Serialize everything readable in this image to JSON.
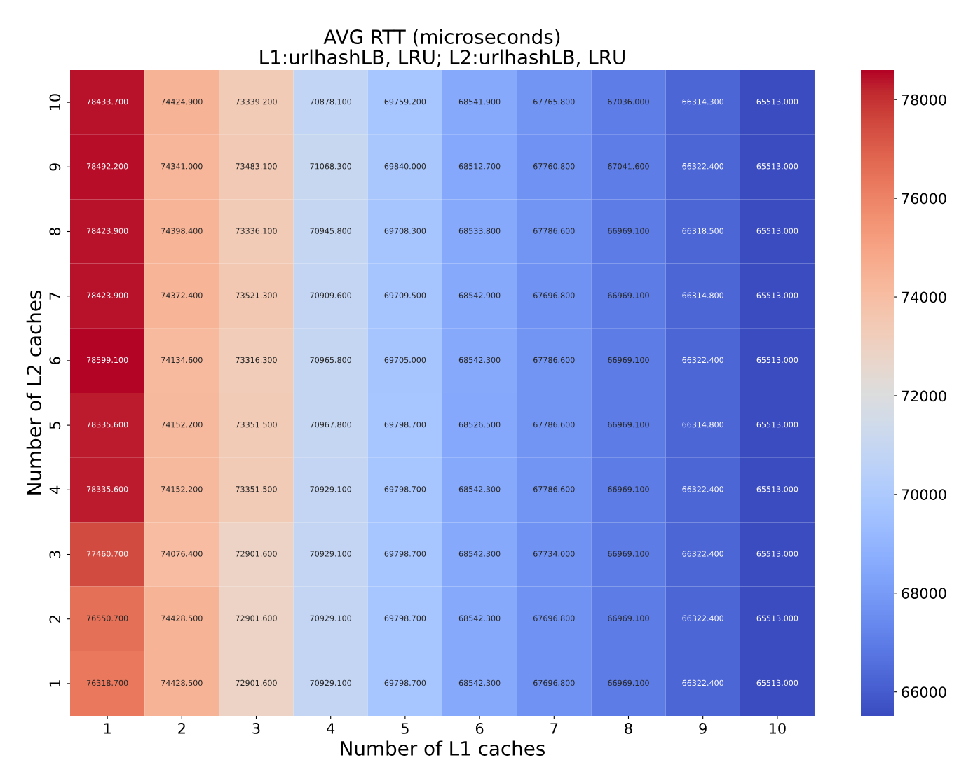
{
  "chart_data": {
    "type": "heatmap",
    "title": "AVG RTT (microseconds)\nL1:urlhashLB, LRU; L2:urlhashLB, LRU",
    "xlabel": "Number of L1 caches",
    "ylabel": "Number of L2 caches",
    "categories": [
      "1",
      "2",
      "3",
      "4",
      "5",
      "6",
      "7",
      "8",
      "9",
      "10"
    ],
    "y_categories": [
      "10",
      "9",
      "8",
      "7",
      "6",
      "5",
      "4",
      "3",
      "2",
      "1"
    ],
    "cells": [
      [
        78433.7,
        74424.9,
        73339.2,
        70878.1,
        69759.2,
        68541.9,
        67765.8,
        67036.0,
        66314.3,
        65513.0
      ],
      [
        78492.2,
        74341.0,
        73483.1,
        71068.3,
        69840.0,
        68512.7,
        67760.8,
        67041.6,
        66322.4,
        65513.0
      ],
      [
        78423.9,
        74398.4,
        73336.1,
        70945.8,
        69708.3,
        68533.8,
        67786.6,
        66969.1,
        66318.5,
        65513.0
      ],
      [
        78423.9,
        74372.4,
        73521.3,
        70909.6,
        69709.5,
        68542.9,
        67696.8,
        66969.1,
        66314.8,
        65513.0
      ],
      [
        78599.1,
        74134.6,
        73316.3,
        70965.8,
        69705.0,
        68542.3,
        67786.6,
        66969.1,
        66322.4,
        65513.0
      ],
      [
        78335.6,
        74152.2,
        73351.5,
        70967.8,
        69798.7,
        68526.5,
        67786.6,
        66969.1,
        66314.8,
        65513.0
      ],
      [
        78335.6,
        74152.2,
        73351.5,
        70929.1,
        69798.7,
        68542.3,
        67786.6,
        66969.1,
        66322.4,
        65513.0
      ],
      [
        77460.7,
        74076.4,
        72901.6,
        70929.1,
        69798.7,
        68542.3,
        67734.0,
        66969.1,
        66322.4,
        65513.0
      ],
      [
        76550.7,
        74428.5,
        72901.6,
        70929.1,
        69798.7,
        68542.3,
        67696.8,
        66969.1,
        66322.4,
        65513.0
      ],
      [
        76318.7,
        74428.5,
        72901.6,
        70929.1,
        69798.7,
        68542.3,
        67696.8,
        66969.1,
        66322.4,
        65513.0
      ]
    ],
    "cell_labels": [
      [
        "78433.700",
        "74424.900",
        "73339.200",
        "70878.100",
        "69759.200",
        "68541.900",
        "67765.800",
        "67036.000",
        "66314.300",
        "65513.000"
      ],
      [
        "78492.200",
        "74341.000",
        "73483.100",
        "71068.300",
        "69840.000",
        "68512.700",
        "67760.800",
        "67041.600",
        "66322.400",
        "65513.000"
      ],
      [
        "78423.900",
        "74398.400",
        "73336.100",
        "70945.800",
        "69708.300",
        "68533.800",
        "67786.600",
        "66969.100",
        "66318.500",
        "65513.000"
      ],
      [
        "78423.900",
        "74372.400",
        "73521.300",
        "70909.600",
        "69709.500",
        "68542.900",
        "67696.800",
        "66969.100",
        "66314.800",
        "65513.000"
      ],
      [
        "78599.100",
        "74134.600",
        "73316.300",
        "70965.800",
        "69705.000",
        "68542.300",
        "67786.600",
        "66969.100",
        "66322.400",
        "65513.000"
      ],
      [
        "78335.600",
        "74152.200",
        "73351.500",
        "70967.800",
        "69798.700",
        "68526.500",
        "67786.600",
        "66969.100",
        "66314.800",
        "65513.000"
      ],
      [
        "78335.600",
        "74152.200",
        "73351.500",
        "70929.100",
        "69798.700",
        "68542.300",
        "67786.600",
        "66969.100",
        "66322.400",
        "65513.000"
      ],
      [
        "77460.700",
        "74076.400",
        "72901.600",
        "70929.100",
        "69798.700",
        "68542.300",
        "67734.000",
        "66969.100",
        "66322.400",
        "65513.000"
      ],
      [
        "76550.700",
        "74428.500",
        "72901.600",
        "70929.100",
        "69798.700",
        "68542.300",
        "67696.800",
        "66969.100",
        "66322.400",
        "65513.000"
      ],
      [
        "76318.700",
        "74428.500",
        "72901.600",
        "70929.100",
        "69798.700",
        "68542.300",
        "67696.800",
        "66969.100",
        "66322.400",
        "65513.000"
      ]
    ],
    "clim": [
      65513.0,
      78599.1
    ],
    "cticks": [
      66000,
      68000,
      70000,
      72000,
      74000,
      76000,
      78000
    ]
  }
}
